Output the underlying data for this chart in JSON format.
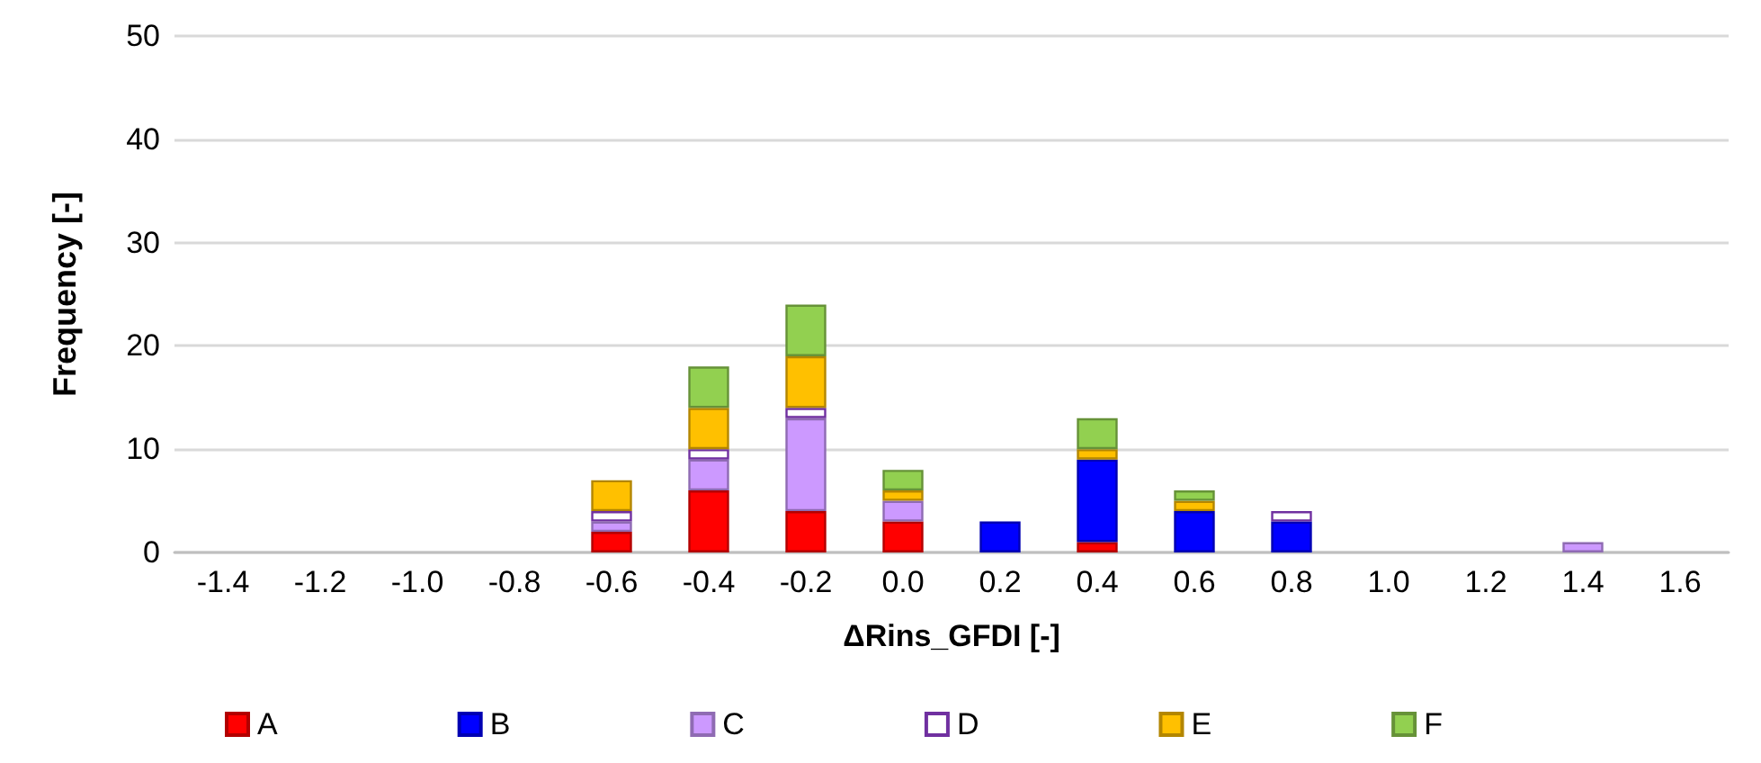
{
  "chart_data": {
    "type": "bar",
    "stacked": true,
    "xlabel": "ΔRins_GFDI [-]",
    "ylabel": "Frequency [-]",
    "categories": [
      "-1.4",
      "-1.2",
      "-1.0",
      "-0.8",
      "-0.6",
      "-0.4",
      "-0.2",
      "0.0",
      "0.2",
      "0.4",
      "0.6",
      "0.8",
      "1.0",
      "1.2",
      "1.4",
      "1.6"
    ],
    "series": [
      {
        "name": "A",
        "color": "#ff0000",
        "values": [
          null,
          null,
          null,
          null,
          2,
          6,
          4,
          3,
          null,
          1,
          null,
          null,
          null,
          null,
          null,
          null
        ]
      },
      {
        "name": "B",
        "color": "#0000ff",
        "values": [
          null,
          null,
          null,
          null,
          null,
          null,
          null,
          null,
          3,
          8,
          4,
          3,
          null,
          null,
          null,
          null
        ]
      },
      {
        "name": "C",
        "color": "#cc99ff",
        "values": [
          null,
          null,
          null,
          null,
          1,
          3,
          9,
          2,
          null,
          null,
          null,
          null,
          null,
          null,
          1,
          null
        ]
      },
      {
        "name": "D",
        "color": "#ffffff",
        "values": [
          null,
          null,
          null,
          null,
          1,
          1,
          1,
          null,
          null,
          null,
          null,
          1,
          null,
          null,
          null,
          null
        ]
      },
      {
        "name": "E",
        "color": "#ffc000",
        "values": [
          null,
          null,
          null,
          null,
          3,
          4,
          5,
          1,
          null,
          1,
          1,
          null,
          null,
          null,
          null,
          null
        ]
      },
      {
        "name": "F",
        "color": "#92d050",
        "values": [
          null,
          null,
          null,
          null,
          null,
          4,
          5,
          2,
          null,
          3,
          1,
          null,
          null,
          null,
          null,
          null
        ]
      }
    ],
    "ylim": [
      0,
      50
    ],
    "yticks": [
      0,
      10,
      20,
      30,
      40,
      50
    ],
    "grid": "y",
    "legend": "bottom"
  }
}
